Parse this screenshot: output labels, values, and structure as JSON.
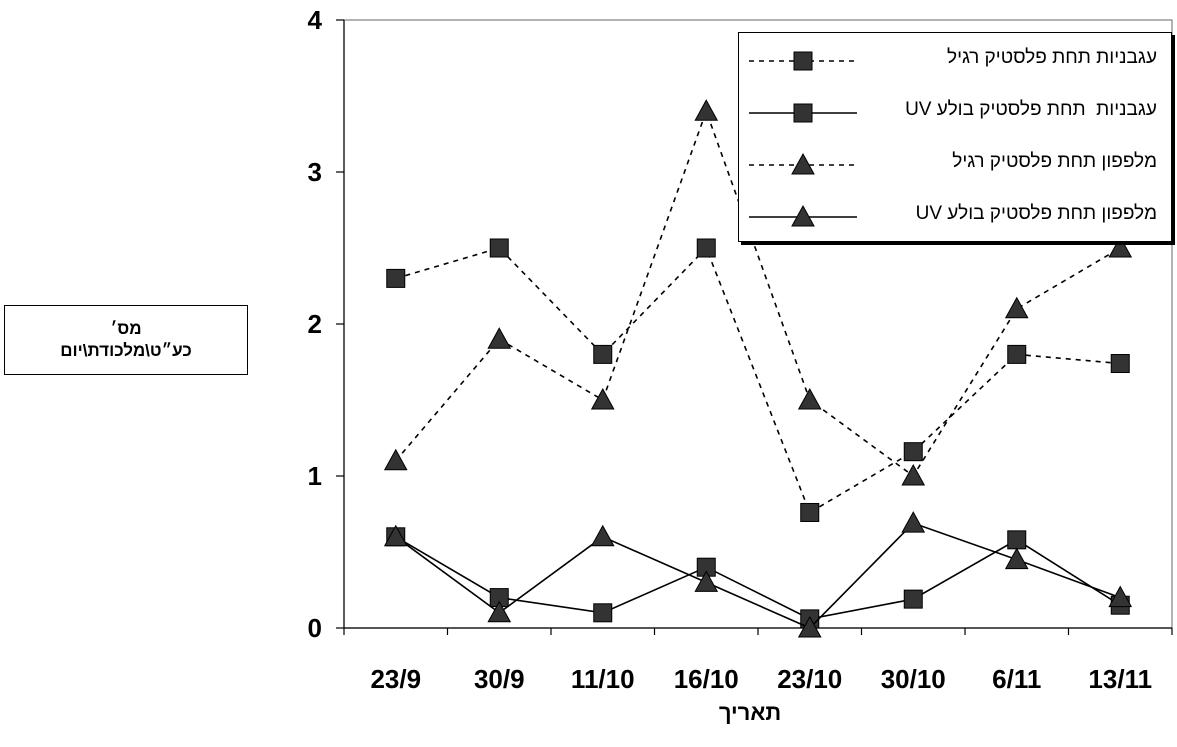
{
  "chart_data": {
    "type": "line",
    "categories": [
      "23/9",
      "30/9",
      "11/10",
      "16/10",
      "23/10",
      "30/10",
      "6/11",
      "13/11"
    ],
    "ylim": [
      0,
      4
    ],
    "yticks": [
      "0",
      "1",
      "2",
      "3",
      "4"
    ],
    "ylabel_line1": "מס׳",
    "ylabel_line2": "כע״ט\\מלכודת\\יום",
    "xlabel": "תאריך",
    "grid": false,
    "legend_position": "top-right",
    "series": [
      {
        "name": "עגבניות תחת פלסטיק רגיל",
        "marker": "square",
        "line": "dashed",
        "color": "#000000",
        "values": [
          2.3,
          2.5,
          1.8,
          2.5,
          0.76,
          1.16,
          1.8,
          1.74
        ]
      },
      {
        "name": "עגבניות  תחת פלסטיק בולע UV",
        "marker": "square",
        "line": "solid",
        "color": "#000000",
        "values": [
          0.6,
          0.2,
          0.1,
          0.4,
          0.06,
          0.19,
          0.58,
          0.15
        ]
      },
      {
        "name": "מלפפון תחת פלסטיק רגיל",
        "marker": "triangle",
        "line": "dashed",
        "color": "#000000",
        "values": [
          1.1,
          1.9,
          1.5,
          3.4,
          1.5,
          1.0,
          2.1,
          2.5
        ]
      },
      {
        "name": "מלפפון תחת פלסטיק בולע UV",
        "marker": "triangle",
        "line": "solid",
        "color": "#000000",
        "values": [
          0.6,
          0.1,
          0.6,
          0.3,
          0.0,
          0.69,
          0.45,
          0.2
        ]
      }
    ]
  }
}
